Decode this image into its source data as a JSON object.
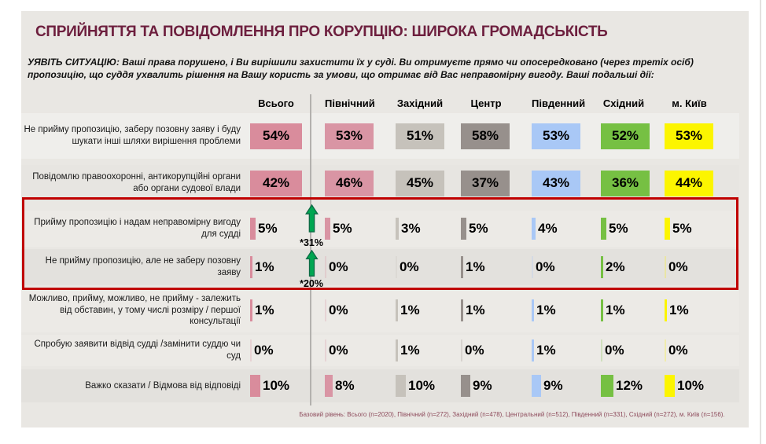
{
  "slide": {
    "title": "СПРИЙНЯТТЯ ТА ПОВІДОМЛЕННЯ ПРО КОРУПЦІЮ: ШИРОКА ГРОМАДСЬКІСТЬ",
    "scenario": "УЯВІТЬ СИТУАЦІЮ: Ваші права порушено, і Ви вирішили захистити їх у суді. Ви отримуєте прямо чи опосередковано (через третіх осіб) пропозицію, що суддя ухвалить рішення на Вашу користь за умови, що отримає від Вас неправомірну вигоду. Ваші подальші дії:",
    "footnote": "Базовий рівень: Всього (n=2020), Північний (n=272), Західний (n=478), Центральний (n=512), Південний (n=331), Східний (n=272), м. Київ (n=156).",
    "title_color": "#6d1f3e",
    "highlight_border_color": "#c00000",
    "arrow_color": "#00a651"
  },
  "chart_data": {
    "type": "table",
    "title": "СПРИЙНЯТТЯ ТА ПОВІДОМЛЕННЯ ПРО КОРУПЦІЮ: ШИРОКА ГРОМАДСЬКІСТЬ",
    "value_unit": "%",
    "legend_position": "none",
    "columns": [
      {
        "label": "Всього",
        "color": "#d98c9c"
      },
      {
        "label": "Північний",
        "color": "#d995a4"
      },
      {
        "label": "Західний",
        "color": "#c6c2bb"
      },
      {
        "label": "Центр",
        "color": "#97908c"
      },
      {
        "label": "Південний",
        "color": "#a9c8f6"
      },
      {
        "label": "Східний",
        "color": "#76c043"
      },
      {
        "label": "м. Київ",
        "color": "#fcf500"
      }
    ],
    "rows": [
      {
        "label": "Не прийму пропозицію, заберу позовну заяву і буду шукати інші шляхи вирішення проблеми",
        "values": [
          54,
          53,
          51,
          58,
          53,
          52,
          53
        ],
        "trend": "up",
        "annotation": "*31%",
        "highlighted": true
      },
      {
        "label": "Повідомлю правоохоронні, антикорупційні органи або органи судової влади",
        "values": [
          42,
          46,
          45,
          37,
          43,
          36,
          44
        ],
        "trend": "up",
        "annotation": "*20%",
        "highlighted": true
      },
      {
        "label": "Прийму пропозицію і надам неправомірну вигоду для судді",
        "values": [
          5,
          5,
          3,
          5,
          4,
          5,
          5
        ]
      },
      {
        "label": "Не прийму пропозицію, але не заберу позовну заяву",
        "values": [
          1,
          0,
          0,
          1,
          0,
          2,
          0
        ]
      },
      {
        "label": "Можливо, прийму, можливо, не прийму - залежить від обставин, у тому числі розміру / першої консультації",
        "values": [
          1,
          0,
          1,
          1,
          1,
          1,
          1
        ]
      },
      {
        "label": "Спробую заявити відвід судді /замінити суддю чи суд",
        "values": [
          0,
          0,
          1,
          0,
          1,
          0,
          0
        ]
      },
      {
        "label": "Важко сказати / Відмова від відповіді",
        "values": [
          10,
          8,
          10,
          9,
          9,
          12,
          10
        ]
      }
    ]
  }
}
